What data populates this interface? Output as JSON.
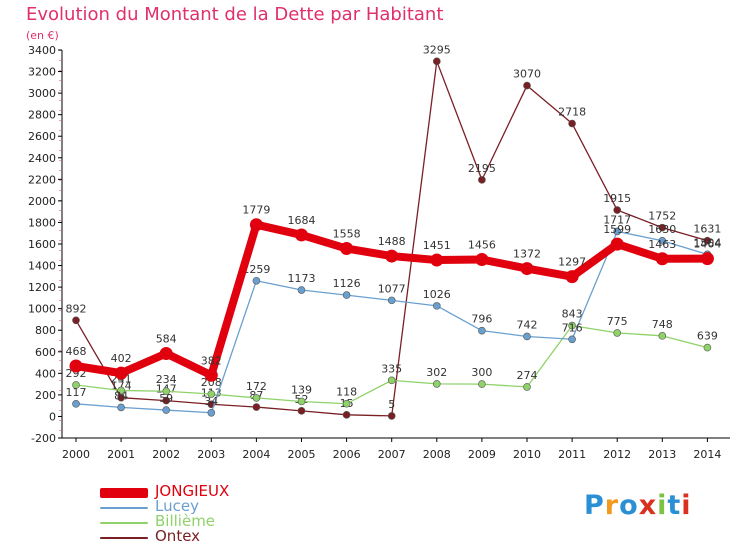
{
  "title": "Evolution du Montant de la Dette par Habitant",
  "subtitle": "(en €)",
  "logo": {
    "text": "Proxiti",
    "colors": [
      "#2a8fd4",
      "#f29a1d",
      "#2a8fd4",
      "#d9301f",
      "#7dc242",
      "#2a8fd4",
      "#d9301f"
    ]
  },
  "chart_data": {
    "type": "line",
    "title": "Evolution du Montant de la Dette par Habitant",
    "subtitle": "(en €)",
    "x": [
      "2000",
      "2001",
      "2002",
      "2003",
      "2004",
      "2005",
      "2006",
      "2007",
      "2008",
      "2009",
      "2010",
      "2011",
      "2012",
      "2013",
      "2014"
    ],
    "ylim": [
      -200,
      3400
    ],
    "yticks": [
      -200,
      0,
      200,
      400,
      600,
      800,
      1000,
      1200,
      1400,
      1600,
      1800,
      2000,
      2200,
      2400,
      2600,
      2800,
      3000,
      3200,
      3400
    ],
    "grid": false,
    "legend": "bottom-left",
    "series": [
      {
        "name": "Ontex",
        "color": "#7a1f24",
        "values": [
          892,
          174,
          147,
          113,
          87,
          52,
          15,
          5,
          3295,
          2195,
          3070,
          2718,
          1915,
          1752,
          1631
        ]
      },
      {
        "name": "Billième",
        "color": "#8fd26a",
        "values": [
          292,
          241,
          234,
          208,
          172,
          139,
          118,
          335,
          302,
          300,
          274,
          843,
          775,
          748,
          639
        ]
      },
      {
        "name": "Lucey",
        "color": "#6aa0cf",
        "values": [
          117,
          84,
          59,
          34,
          1259,
          1173,
          1126,
          1077,
          1026,
          796,
          742,
          716,
          1717,
          1630,
          1504
        ]
      },
      {
        "name": "JONGIEUX",
        "color": "#e0000e",
        "values": [
          468,
          402,
          584,
          382,
          1779,
          1684,
          1558,
          1488,
          1451,
          1456,
          1372,
          1297,
          1599,
          1463,
          1464
        ]
      }
    ]
  }
}
